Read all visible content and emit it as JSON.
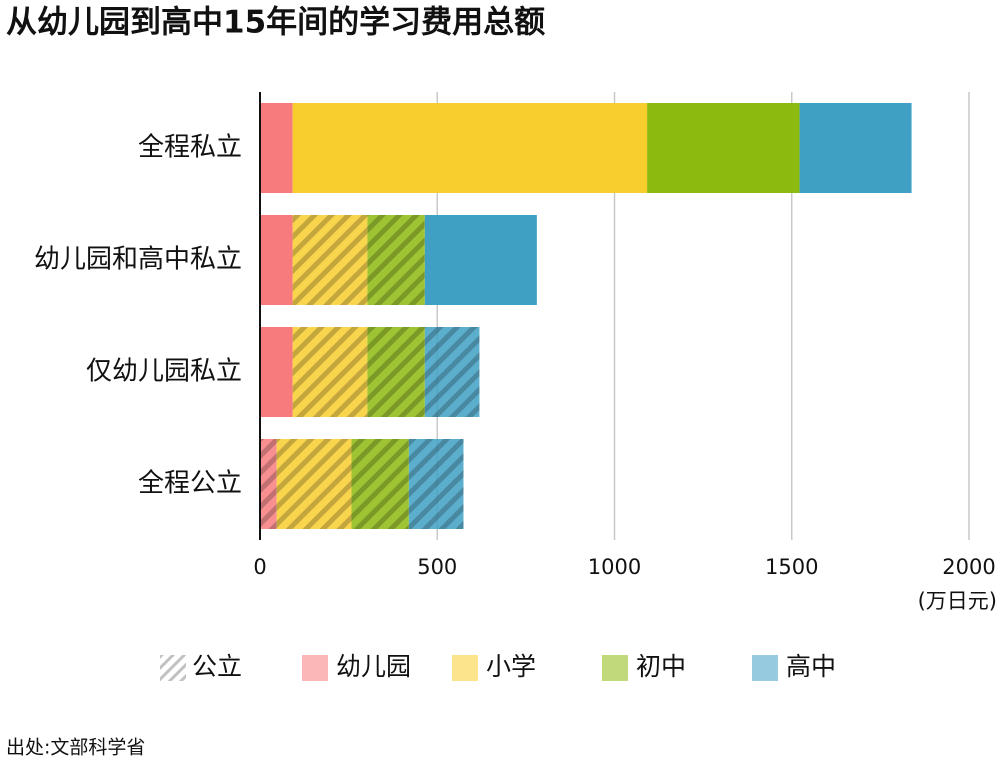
{
  "chart_data": {
    "type": "bar",
    "orientation": "horizontal",
    "stacked": true,
    "title": "从幼儿园到高中15年间的学习费用总额",
    "categories": [
      "全程私立",
      "幼儿园和高中私立",
      "仅幼儿园私立",
      "全程公立"
    ],
    "series": [
      {
        "name": "幼儿园",
        "color": "#f77b7d",
        "values": [
          92,
          92,
          92,
          47
        ],
        "hatched": [
          false,
          false,
          false,
          true
        ]
      },
      {
        "name": "小学",
        "color": "#f8cd2e",
        "values": [
          1000,
          211,
          211,
          211
        ],
        "hatched": [
          false,
          true,
          true,
          true
        ]
      },
      {
        "name": "初中",
        "color": "#8dba0f",
        "values": [
          430,
          162,
          162,
          162
        ],
        "hatched": [
          false,
          true,
          true,
          true
        ]
      },
      {
        "name": "高中",
        "color": "#3fa0c4",
        "values": [
          316,
          316,
          154,
          154
        ],
        "hatched": [
          false,
          false,
          true,
          true
        ]
      }
    ],
    "hatch_legend": "公立",
    "xlim": [
      0,
      2000
    ],
    "xticks": [
      0,
      500,
      1000,
      1500,
      2000
    ],
    "x_unit": "(万日元)",
    "grid": true,
    "source": "出处:文部科学省"
  }
}
